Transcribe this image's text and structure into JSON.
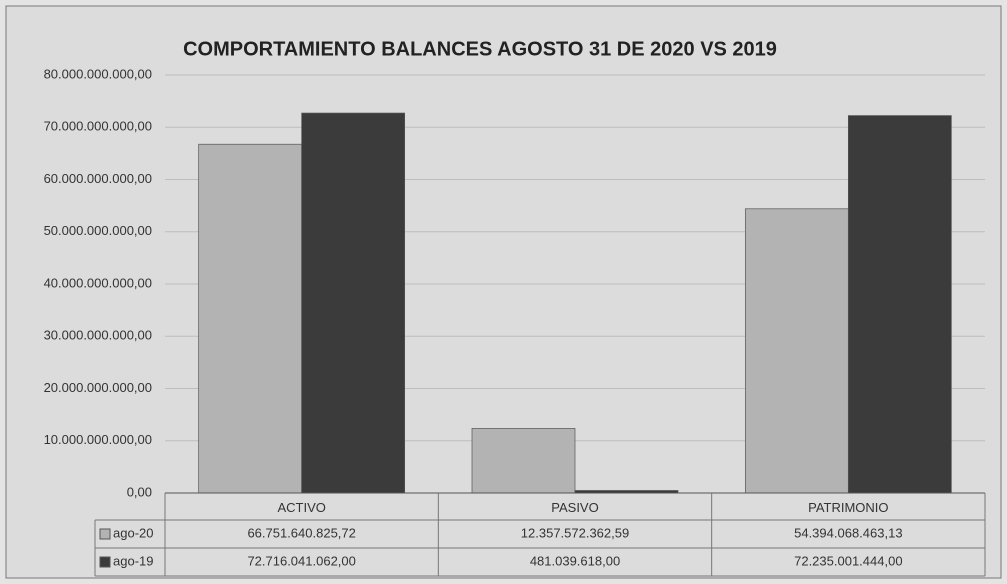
{
  "chart_data": {
    "type": "bar",
    "title": "COMPORTAMIENTO BALANCES AGOSTO 31 DE  2020 VS 2019",
    "categories": [
      "ACTIVO",
      "PASIVO",
      "PATRIMONIO"
    ],
    "series": [
      {
        "name": "ago-20",
        "color": "#b3b3b3",
        "values": [
          66751640825.72,
          12357572362.59,
          54394068463.13
        ],
        "value_labels": [
          "66.751.640.825,72",
          "12.357.572.362,59",
          "54.394.068.463,13"
        ]
      },
      {
        "name": "ago-19",
        "color": "#3b3b3b",
        "values": [
          72716041062.0,
          481039618.0,
          72235001444.0
        ],
        "value_labels": [
          "72.716.041.062,00",
          "481.039.618,00",
          "72.235.001.444,00"
        ]
      }
    ],
    "ylim": [
      0,
      80000000000
    ],
    "yticks": [
      {
        "value": 0,
        "label": "0,00"
      },
      {
        "value": 10000000000,
        "label": "10.000.000.000,00"
      },
      {
        "value": 20000000000,
        "label": "20.000.000.000,00"
      },
      {
        "value": 30000000000,
        "label": "30.000.000.000,00"
      },
      {
        "value": 40000000000,
        "label": "40.000.000.000,00"
      },
      {
        "value": 50000000000,
        "label": "50.000.000.000,00"
      },
      {
        "value": 60000000000,
        "label": "60.000.000.000,00"
      },
      {
        "value": 70000000000,
        "label": "70.000.000.000,00"
      },
      {
        "value": 80000000000,
        "label": "80.000.000.000,00"
      }
    ],
    "grid": true
  }
}
